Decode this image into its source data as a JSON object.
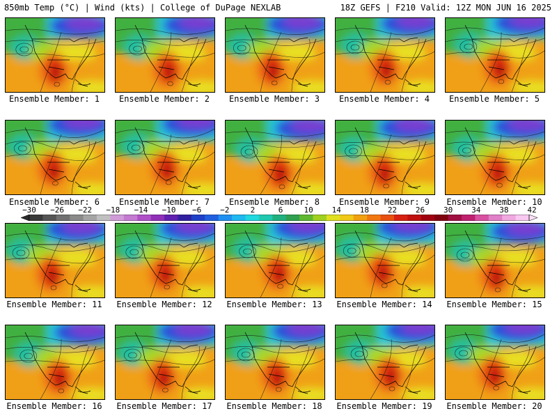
{
  "header": {
    "left": "850mb Temp (°C) | Wind (kts) | College of DuPage NEXLAB",
    "right": "18Z GEFS | F210 Valid: 12Z MON JUN 16 2025"
  },
  "members": [
    {
      "label": "Ensemble Member: 1"
    },
    {
      "label": "Ensemble Member: 2"
    },
    {
      "label": "Ensemble Member: 3"
    },
    {
      "label": "Ensemble Member: 4"
    },
    {
      "label": "Ensemble Member: 5"
    },
    {
      "label": "Ensemble Member: 6"
    },
    {
      "label": "Ensemble Member: 7"
    },
    {
      "label": "Ensemble Member: 8"
    },
    {
      "label": "Ensemble Member: 9"
    },
    {
      "label": "Ensemble Member: 10"
    },
    {
      "label": "Ensemble Member: 11"
    },
    {
      "label": "Ensemble Member: 12"
    },
    {
      "label": "Ensemble Member: 13"
    },
    {
      "label": "Ensemble Member: 14"
    },
    {
      "label": "Ensemble Member: 15"
    },
    {
      "label": "Ensemble Member: 16"
    },
    {
      "label": "Ensemble Member: 17"
    },
    {
      "label": "Ensemble Member: 18"
    },
    {
      "label": "Ensemble Member: 19"
    },
    {
      "label": "Ensemble Member: 20"
    }
  ],
  "colorbar": {
    "ticks": [
      "−30",
      "−26",
      "−22",
      "−18",
      "−14",
      "−10",
      "−6",
      "−2",
      "2",
      "6",
      "10",
      "14",
      "18",
      "22",
      "26",
      "30",
      "34",
      "38",
      "42"
    ],
    "colors": [
      "#3a3a3a",
      "#555555",
      "#707070",
      "#8a8a8a",
      "#a5a5a5",
      "#c0c0c0",
      "#d09cd8",
      "#c47ad0",
      "#b050c8",
      "#9030b8",
      "#6020b0",
      "#3020a0",
      "#2040c8",
      "#2060e0",
      "#2090f0",
      "#20b8f0",
      "#20d8e0",
      "#20c8b0",
      "#20b080",
      "#30a050",
      "#60b830",
      "#a0d020",
      "#e0e020",
      "#f0c818",
      "#f0a010",
      "#f07810",
      "#e85010",
      "#d82010",
      "#c01010",
      "#a00010",
      "#800010",
      "#a01040",
      "#c02070",
      "#d850a0",
      "#e080c8",
      "#f0a8e0",
      "#f8c8f0"
    ]
  },
  "field_colors": {
    "purple": "#7a3cd0",
    "blue": "#2c4fd8",
    "lightblue": "#2aa0e8",
    "cyan": "#22c8d8",
    "teal": "#22c0a0",
    "green": "#40b040",
    "lime": "#a8d828",
    "yellow": "#e8e020",
    "orange": "#f0a018",
    "darkorange": "#f07818",
    "red": "#e03010",
    "darkred": "#b01010"
  }
}
